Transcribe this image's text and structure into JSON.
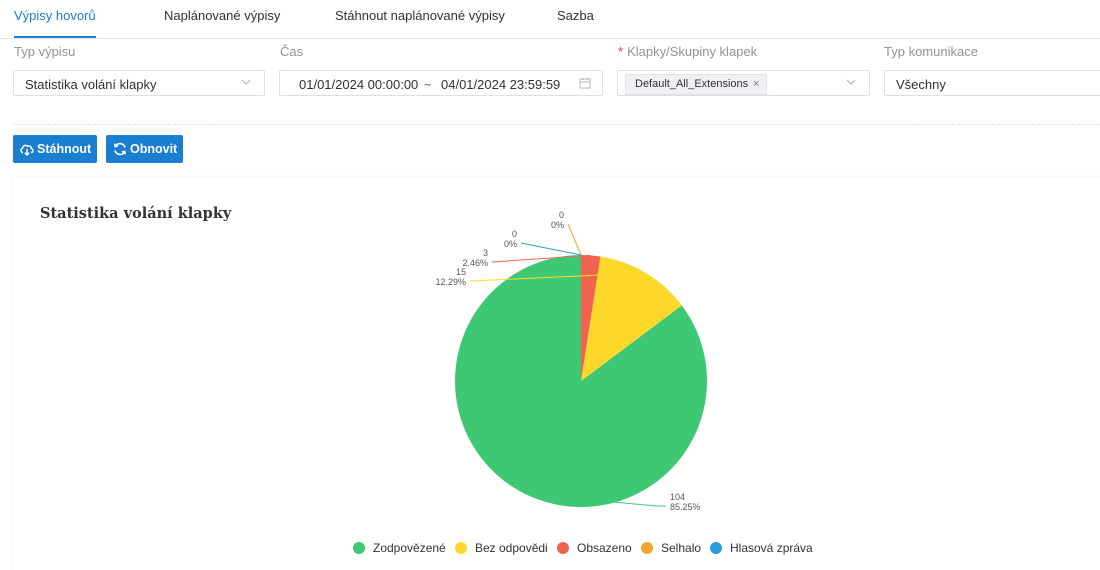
{
  "tabs": [
    {
      "label": "Výpisy hovorů",
      "active": true
    },
    {
      "label": "Naplánované výpisy",
      "active": false
    },
    {
      "label": "Stáhnout naplánované výpisy",
      "active": false
    },
    {
      "label": "Sazba",
      "active": false
    }
  ],
  "filters": {
    "report_type": {
      "label": "Typ výpisu",
      "value": "Statistika volání klapky"
    },
    "time": {
      "label": "Čas",
      "start": "01/01/2024 00:00:00",
      "separator": "~",
      "end": "04/01/2024 23:59:59"
    },
    "extensions": {
      "required_mark": "*",
      "label": "Klapky/Skupiny klapek",
      "tag": "Default_All_Extensions",
      "tag_remove": "×"
    },
    "communication_type": {
      "label": "Typ komunikace",
      "value": "Všechny"
    }
  },
  "actions": {
    "download_label": "Stáhnout",
    "refresh_label": "Obnovit"
  },
  "colors": {
    "accent": "#1a7fd1"
  },
  "chart_data": {
    "type": "pie",
    "title": "Statistika volání klapky",
    "slices": [
      {
        "name": "Zodpovězené",
        "value": 104,
        "percent": "85.25%",
        "color": "#3fc873"
      },
      {
        "name": "Bez odpovědi",
        "value": 15,
        "percent": "12.29%",
        "color": "#fdd82a"
      },
      {
        "name": "Obsazeno",
        "value": 3,
        "percent": "2.46%",
        "color": "#f1634f"
      },
      {
        "name": "Selhalo",
        "value": 0,
        "percent": "0%",
        "color": "#f6a42b"
      },
      {
        "name": "Hlasová zpráva",
        "value": 0,
        "percent": "0%",
        "color": "#2a9ce0"
      }
    ],
    "legend_position": "bottom"
  }
}
